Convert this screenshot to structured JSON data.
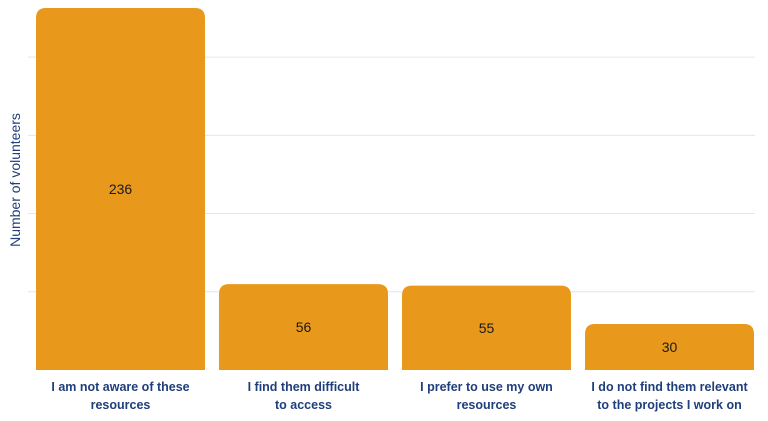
{
  "chart_data": {
    "type": "bar",
    "categories": [
      "I am not aware of these resources",
      "I find them difficult to access",
      "I prefer to use my own resources",
      "I do not find them relevant to the projects I work on"
    ],
    "category_lines": [
      [
        "I am not aware of these",
        "resources"
      ],
      [
        "I find them difficult",
        "to access"
      ],
      [
        "I prefer to use my own",
        "resources"
      ],
      [
        "I do not find them relevant",
        "to the projects I work on"
      ]
    ],
    "values": [
      236,
      56,
      55,
      30
    ],
    "ylabel": "Number of volunteers",
    "xlabel": "",
    "ylim": [
      0,
      236
    ],
    "grid": true,
    "colors": {
      "bar": "#E8991C",
      "grid": "#e6e6e6",
      "text": "#1f3f7a",
      "value_text": "#1a1a1a"
    }
  }
}
